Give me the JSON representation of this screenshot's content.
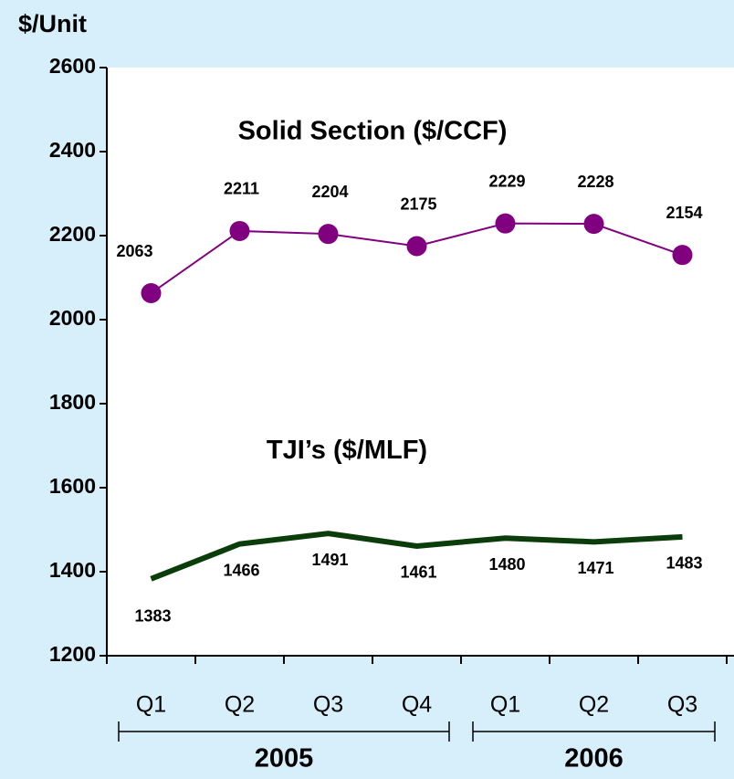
{
  "chart_data": {
    "type": "line",
    "y_axis_label": "$/Unit",
    "groups": [
      {
        "name": "2005",
        "categories": [
          "Q1",
          "Q2",
          "Q3",
          "Q4"
        ]
      },
      {
        "name": "2006",
        "categories": [
          "Q1",
          "Q2",
          "Q3"
        ]
      }
    ],
    "series": [
      {
        "name": "Solid Section ($/CCF)",
        "color": "#800080",
        "markers": true,
        "values": [
          2063,
          2211,
          2204,
          2175,
          2229,
          2228,
          2154
        ]
      },
      {
        "name": "TJI’s ($/MLF)",
        "color": "#0b3d0b",
        "markers": false,
        "values": [
          1383,
          1466,
          1491,
          1461,
          1480,
          1471,
          1483
        ]
      }
    ],
    "ylim": [
      1200,
      2600
    ],
    "yticks": [
      1200,
      1400,
      1600,
      1800,
      2000,
      2200,
      2400,
      2600
    ],
    "grid": false
  }
}
